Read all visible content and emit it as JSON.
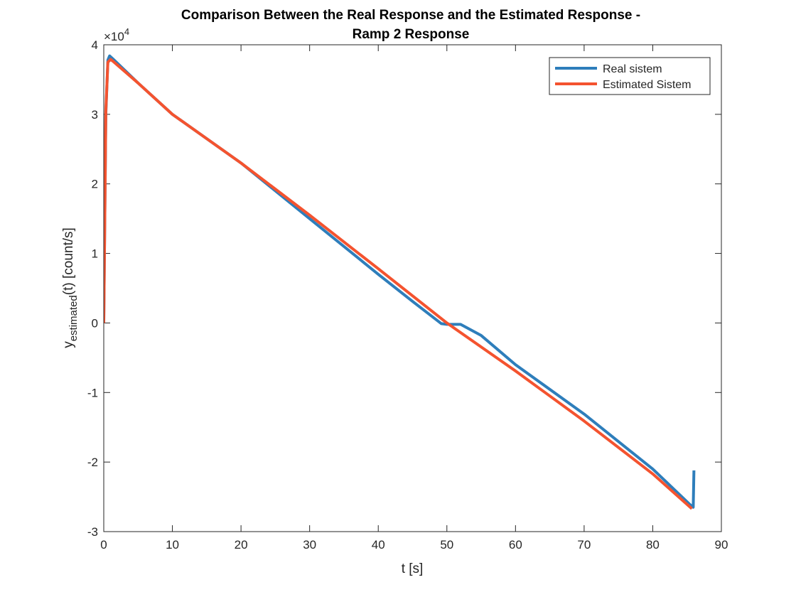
{
  "chart_data": {
    "type": "line",
    "title_line1": "Comparison Between the Real Response and the Estimated Response -",
    "title_line2": "Ramp 2 Response",
    "xlabel": "t [s]",
    "ylabel_main": "y",
    "ylabel_sub": "estimated",
    "ylabel_tail": "(t) [count/s]",
    "y_exponent_base": "×10",
    "y_exponent_power": "4",
    "xlim": [
      0,
      90
    ],
    "ylim": [
      -3,
      4
    ],
    "x_ticks": [
      0,
      10,
      20,
      30,
      40,
      50,
      60,
      70,
      80,
      90
    ],
    "y_ticks": [
      -3,
      -2,
      -1,
      0,
      1,
      2,
      3,
      4
    ],
    "x_tick_labels": [
      "0",
      "10",
      "20",
      "30",
      "40",
      "50",
      "60",
      "70",
      "80",
      "90"
    ],
    "y_tick_labels": [
      "-3",
      "-2",
      "-1",
      "0",
      "1",
      "2",
      "3",
      "4"
    ],
    "grid": false,
    "legend_position": "top-right",
    "series": [
      {
        "name": "Real sistem",
        "color": "#2E7EBB",
        "points": [
          [
            0,
            0
          ],
          [
            0.3,
            3.0
          ],
          [
            0.6,
            3.78
          ],
          [
            0.85,
            3.84
          ],
          [
            1.3,
            3.8
          ],
          [
            5,
            3.45
          ],
          [
            10,
            3.0
          ],
          [
            20,
            2.3
          ],
          [
            30,
            1.5
          ],
          [
            40,
            0.7
          ],
          [
            45,
            0.31
          ],
          [
            49.2,
            -0.01
          ],
          [
            50,
            -0.02
          ],
          [
            52,
            -0.02
          ],
          [
            55,
            -0.18
          ],
          [
            60,
            -0.6
          ],
          [
            70,
            -1.31
          ],
          [
            80,
            -2.1
          ],
          [
            85.3,
            -2.6
          ],
          [
            85.9,
            -2.65
          ],
          [
            86,
            -2.12
          ]
        ]
      },
      {
        "name": "Estimated Sistem",
        "color": "#F4532F",
        "points": [
          [
            0,
            0
          ],
          [
            0.3,
            3.05
          ],
          [
            0.6,
            3.75
          ],
          [
            1.0,
            3.79
          ],
          [
            1.5,
            3.75
          ],
          [
            5,
            3.45
          ],
          [
            10,
            3.0
          ],
          [
            20,
            2.3
          ],
          [
            30,
            1.55
          ],
          [
            40,
            0.78
          ],
          [
            50,
            0.0
          ],
          [
            60,
            -0.69
          ],
          [
            70,
            -1.41
          ],
          [
            80,
            -2.17
          ],
          [
            85.7,
            -2.67
          ]
        ]
      }
    ]
  }
}
